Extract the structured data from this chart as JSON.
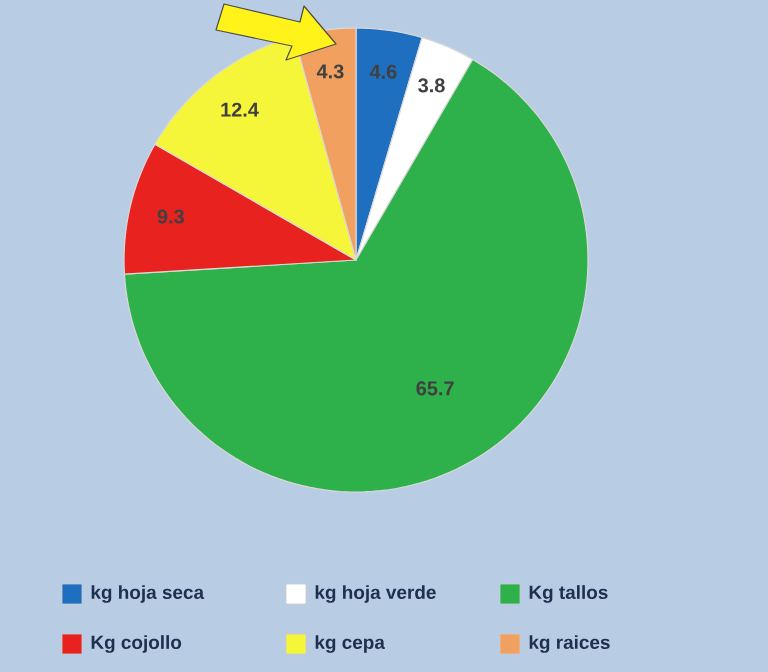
{
  "chart_data": {
    "type": "pie",
    "categories": [
      "kg hoja seca",
      "kg hoja verde",
      "Kg tallos",
      "Kg cojollo",
      "kg cepa",
      "kg raices"
    ],
    "values": [
      4.6,
      3.8,
      65.7,
      9.3,
      12.4,
      4.3
    ],
    "colors": [
      "#1f6fc0",
      "#ffffff",
      "#2eb04a",
      "#e8231f",
      "#f5f53a",
      "#f2a060"
    ],
    "data_labels": true,
    "legend": "bottom"
  }
}
